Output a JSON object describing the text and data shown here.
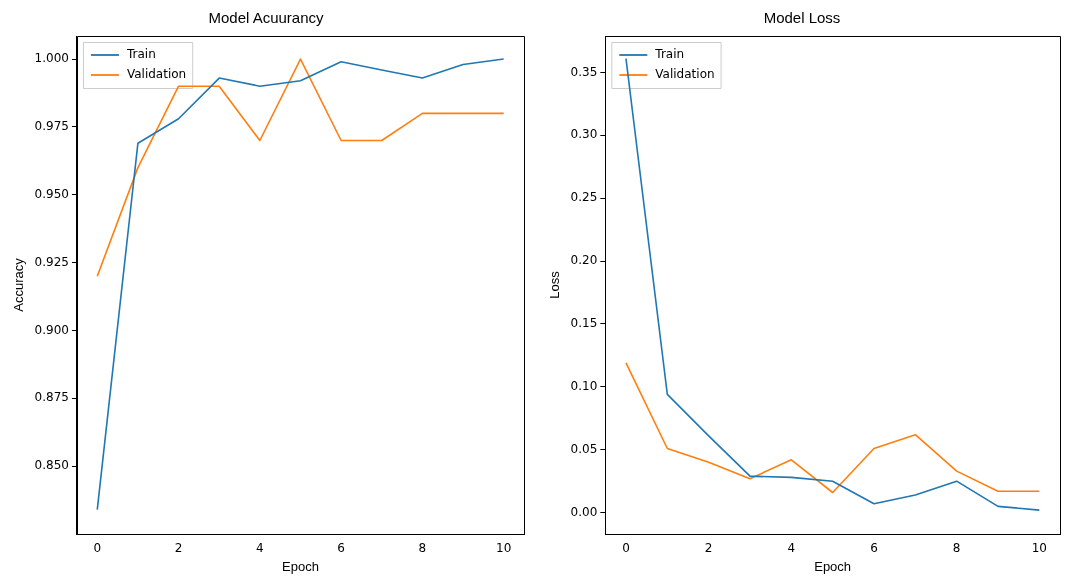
{
  "chart_data": [
    {
      "type": "line",
      "title": "Model Acuurancy",
      "xlabel": "Epoch",
      "ylabel": "Accuracy",
      "x": [
        0,
        1,
        2,
        3,
        4,
        5,
        6,
        7,
        8,
        9,
        10
      ],
      "series": [
        {
          "name": "Train",
          "color": "#1f77b4",
          "values": [
            0.834,
            0.969,
            0.978,
            0.993,
            0.99,
            0.992,
            0.999,
            0.996,
            0.993,
            0.998,
            1.0
          ]
        },
        {
          "name": "Validation",
          "color": "#ff7f0e",
          "values": [
            0.92,
            0.96,
            0.99,
            0.99,
            0.97,
            1.0,
            0.97,
            0.97,
            0.98,
            0.98,
            0.98
          ]
        }
      ],
      "xlim": [
        -0.5,
        10.5
      ],
      "xticks": [
        0,
        2,
        4,
        6,
        8,
        10
      ],
      "ylim": [
        0.825,
        1.0085
      ],
      "yticks": [
        {
          "value": 0.85,
          "label": "0.850"
        },
        {
          "value": 0.875,
          "label": "0.875"
        },
        {
          "value": 0.9,
          "label": "0.900"
        },
        {
          "value": 0.925,
          "label": "0.925"
        },
        {
          "value": 0.95,
          "label": "0.950"
        },
        {
          "value": 0.975,
          "label": "0.975"
        },
        {
          "value": 1.0,
          "label": "1.000"
        }
      ],
      "legend": "top left",
      "grid": false,
      "marker": "none",
      "line_style": "solid"
    },
    {
      "type": "line",
      "title": "Model Loss",
      "xlabel": "Epoch",
      "ylabel": "Loss",
      "x": [
        0,
        1,
        2,
        3,
        4,
        5,
        6,
        7,
        8,
        9,
        10
      ],
      "series": [
        {
          "name": "Train",
          "color": "#1f77b4",
          "values": [
            0.361,
            0.094,
            0.061,
            0.029,
            0.028,
            0.025,
            0.007,
            0.014,
            0.025,
            0.005,
            0.002
          ]
        },
        {
          "name": "Validation",
          "color": "#ff7f0e",
          "values": [
            0.119,
            0.051,
            0.04,
            0.027,
            0.042,
            0.016,
            0.051,
            0.062,
            0.033,
            0.017,
            0.017
          ]
        }
      ],
      "xlim": [
        -0.5,
        10.5
      ],
      "xticks": [
        0,
        2,
        4,
        6,
        8,
        10
      ],
      "ylim": [
        -0.017,
        0.379
      ],
      "yticks": [
        {
          "value": 0,
          "label": "0.00"
        },
        {
          "value": 0.05,
          "label": "0.05"
        },
        {
          "value": 0.1,
          "label": "0.10"
        },
        {
          "value": 0.15,
          "label": "0.15"
        },
        {
          "value": 0.2,
          "label": "0.20"
        },
        {
          "value": 0.25,
          "label": "0.25"
        },
        {
          "value": 0.3,
          "label": "0.30"
        },
        {
          "value": 0.35,
          "label": "0.35"
        }
      ],
      "legend": "top left",
      "grid": false,
      "marker": "none",
      "line_style": "solid"
    }
  ]
}
